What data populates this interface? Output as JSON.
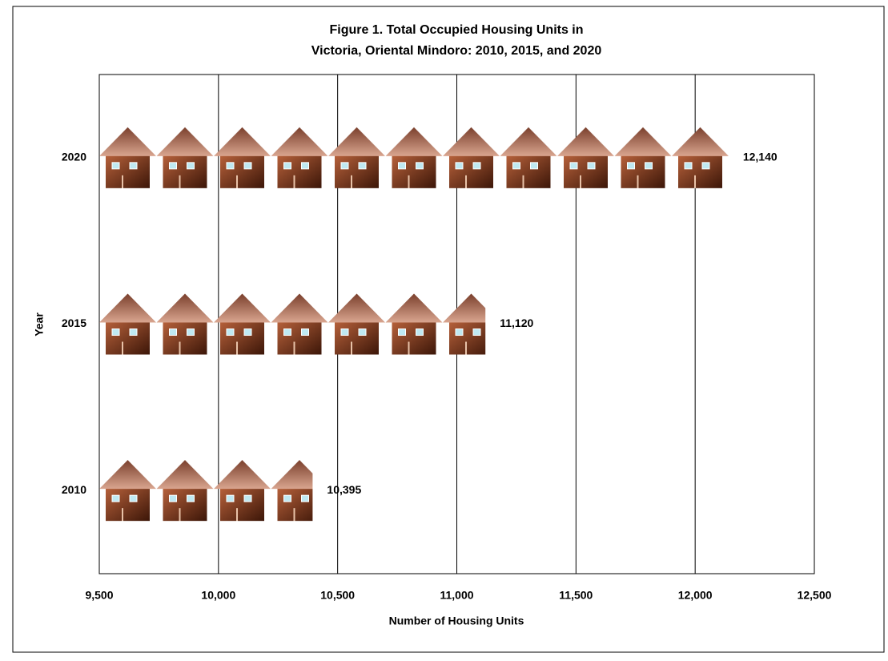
{
  "chart_data": {
    "type": "pictograph-bar",
    "title": [
      "Figure 1. Total Occupied Housing Units in",
      "Victoria, Oriental Mindoro: 2010, 2015, and 2020"
    ],
    "x_label": "Number of Housing Units",
    "y_label": "Year",
    "categories": [
      "2010",
      "2015",
      "2020"
    ],
    "values": [
      10395,
      11120,
      12140
    ],
    "value_labels": [
      "10,395",
      "11,120",
      "12,140"
    ],
    "color": "#8b4a32",
    "xlim": [
      9500,
      12500
    ],
    "xticks": [
      {
        "value": 9500,
        "label": "9,500"
      },
      {
        "value": 10000,
        "label": "10,000"
      },
      {
        "value": 10500,
        "label": "10,500"
      },
      {
        "value": 11000,
        "label": "11,000"
      },
      {
        "value": 11500,
        "label": "11,500"
      },
      {
        "value": 12000,
        "label": "12,000"
      },
      {
        "value": 12500,
        "label": "12,500"
      }
    ],
    "grid": true
  }
}
